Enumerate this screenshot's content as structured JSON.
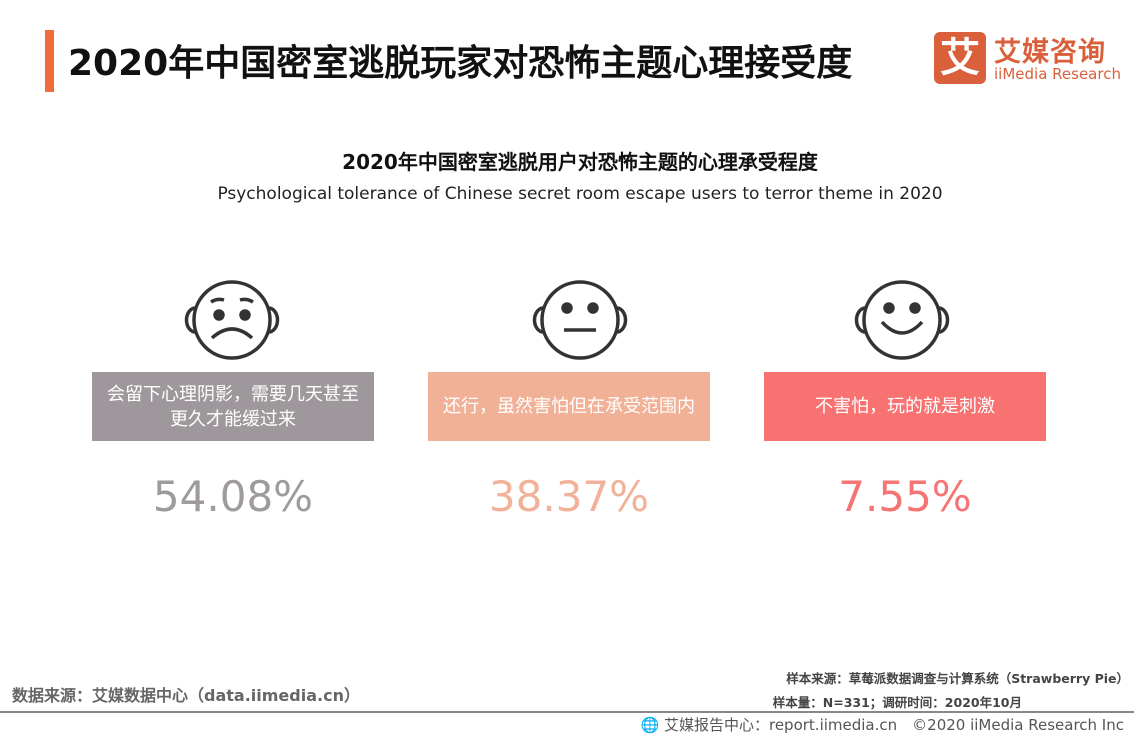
{
  "header": {
    "title": "2020年中国密室逃脱玩家对恐怖主题心理接受度",
    "accent": "#f26b3a"
  },
  "logo": {
    "mark": "艾",
    "cn": "艾媒咨询",
    "en": "iiMedia Research",
    "color": "#d9603b"
  },
  "chart": {
    "title_cn": "2020年中国密室逃脱用户对恐怖主题的心理承受程度",
    "title_en": "Psychological tolerance of Chinese secret room escape users to terror theme in 2020"
  },
  "items": [
    {
      "icon": "sad-face-icon",
      "label": "会留下心理阴影，需要几天甚至更久才能缓过来",
      "value": "54.08%",
      "color": "#9e989c",
      "text_color": "#9e9a9e"
    },
    {
      "icon": "neutral-face-icon",
      "label": "还行，虽然害怕但在承受范围内",
      "value": "38.37%",
      "color": "#f0b197",
      "text_color": "#f2b29a"
    },
    {
      "icon": "smile-face-icon",
      "label": "不害怕，玩的就是刺激",
      "value": "7.55%",
      "color": "#f87272",
      "text_color": "#f57474"
    }
  ],
  "footer": {
    "source": "数据来源：艾媒数据中心（data.iimedia.cn）",
    "sample_source": "样本来源：草莓派数据调查与计算系统（Strawberry Pie）",
    "sample_size": "样本量：N=331；调研时间：2020年10月",
    "copyright": "艾媒报告中心：report.iimedia.cn　©2020  iiMedia Research  Inc"
  }
}
